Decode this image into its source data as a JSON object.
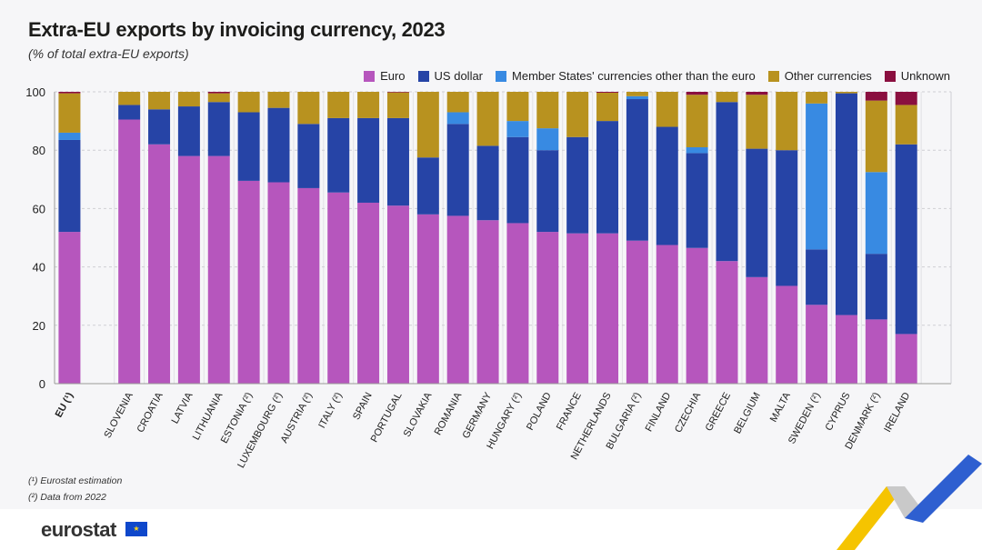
{
  "chart_data": {
    "type": "bar",
    "stacked": true,
    "title": "Extra-EU exports by invoicing currency, 2023",
    "subtitle": "(% of total extra-EU exports)",
    "xlabel": "",
    "ylabel": "",
    "ylim": [
      0,
      100
    ],
    "yticks": [
      "0",
      "20",
      "40",
      "60",
      "80",
      "100"
    ],
    "grid": true,
    "legend_position": "top-right",
    "categories": [
      "EU (¹)",
      "SLOVENIA",
      "CROATIA",
      "LATVIA",
      "LITHUANIA",
      "ESTONIA (²)",
      "LUXEMBOURG (²)",
      "AUSTRIA (²)",
      "ITALY (²)",
      "SPAIN",
      "PORTUGAL",
      "SLOVAKIA",
      "ROMANIA",
      "GERMANY",
      "HUNGARY (²)",
      "POLAND",
      "FRANCE",
      "NETHERLANDS",
      "BULGARIA (²)",
      "FINLAND",
      "CZECHIA",
      "GREECE",
      "BELGIUM",
      "MALTA",
      "SWEDEN (²)",
      "CYPRUS",
      "DENMARK (²)",
      "IRELAND"
    ],
    "series": [
      {
        "name": "Euro",
        "color": "#b656bd",
        "values": [
          52,
          90.5,
          82,
          78,
          78,
          69.5,
          69,
          67,
          65.5,
          62,
          61,
          58,
          57.5,
          56,
          55,
          52,
          51.5,
          51.5,
          49,
          47.5,
          46.5,
          42,
          36.5,
          33.5,
          27,
          23.5,
          22,
          17
        ]
      },
      {
        "name": "US dollar",
        "color": "#2644a6",
        "values": [
          31.5,
          5,
          12,
          17,
          18.5,
          23.5,
          25.5,
          22,
          25.5,
          29,
          30,
          19.5,
          31.5,
          25.5,
          29.5,
          28,
          33,
          38.5,
          48.5,
          40.5,
          32.5,
          54.5,
          44,
          46.5,
          19,
          76,
          22.5,
          65
        ]
      },
      {
        "name": "Member States' currencies other than the euro",
        "color": "#388ae2",
        "values": [
          2.5,
          0,
          0,
          0,
          0,
          0,
          0,
          0,
          0,
          0,
          0,
          0,
          4,
          0,
          5.5,
          7.5,
          0,
          0,
          1,
          0,
          2,
          0,
          0,
          0,
          50,
          0,
          28,
          0
        ]
      },
      {
        "name": "Other currencies",
        "color": "#b8921f",
        "values": [
          13.5,
          4.5,
          6,
          5,
          3,
          7,
          5.5,
          11,
          9,
          9,
          8.8,
          22.5,
          7,
          18.5,
          10,
          12.5,
          15.5,
          9.7,
          1.5,
          12,
          18,
          3.5,
          18.5,
          20,
          4,
          0.5,
          24.5,
          13.5
        ]
      },
      {
        "name": "Unknown",
        "color": "#8a0f3f",
        "values": [
          0.5,
          0,
          0,
          0,
          0.5,
          0,
          0,
          0,
          0,
          0,
          0.2,
          0,
          0,
          0,
          0,
          0,
          0,
          0.3,
          0,
          0,
          1,
          0,
          1,
          0,
          0,
          0,
          3,
          4.5
        ]
      }
    ]
  },
  "footnotes": [
    "(¹) Eurostat estimation",
    "(²) Data from 2022"
  ],
  "logo_text": "eurostat"
}
